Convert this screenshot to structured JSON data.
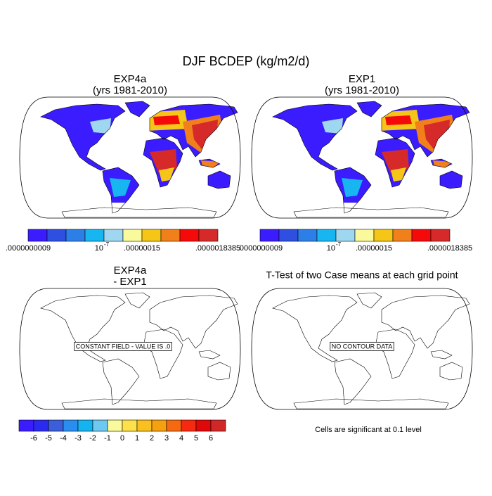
{
  "title": "DJF BCDEP (kg/m2/d)",
  "panels": [
    {
      "title": [
        "EXP4a",
        "(yrs 1981-2010)"
      ],
      "filled": true
    },
    {
      "title": [
        "EXP1",
        "(yrs 1981-2010)"
      ],
      "filled": true
    },
    {
      "title": [
        "EXP4a",
        "- EXP1"
      ],
      "filled": false,
      "annotation": "CONSTANT FIELD - VALUE IS .0"
    },
    {
      "title": [
        "T-Test of two Case means at each grid point"
      ],
      "filled": false,
      "annotation": "NO CONTOUR DATA"
    }
  ],
  "colorbars": [
    {
      "colors": [
        "#3b1cff",
        "#2e4fe0",
        "#2d7fe8",
        "#18b6f0",
        "#9fd7f0",
        "#fafa9c",
        "#f5c518",
        "#f2801a",
        "#f50a0a",
        "#d62a2a"
      ],
      "labels": [
        {
          "value": 9e-10,
          "label": ".0000000009"
        },
        {
          "value": 1e-07,
          "label": "10",
          "exponent": "-7"
        },
        {
          "value": 1.5e-07,
          "label": ".00000015"
        },
        {
          "value": 1.8385e-06,
          "label": ".0000018385"
        }
      ]
    },
    {
      "colors": [
        "#3b1cff",
        "#2e4fe0",
        "#2d7fe8",
        "#18b6f0",
        "#9fd7f0",
        "#fafa9c",
        "#f5c518",
        "#f2801a",
        "#f50a0a",
        "#d62a2a"
      ],
      "labels": [
        {
          "value": 9e-10,
          "label": ".0000000009"
        },
        {
          "value": 1e-07,
          "label": "10",
          "exponent": "-7"
        },
        {
          "value": 1.5e-07,
          "label": ".00000015"
        },
        {
          "value": 1.8385e-06,
          "label": ".0000018385"
        }
      ]
    },
    {
      "colors": [
        "#3b1cff",
        "#2b2bf0",
        "#3a5fd8",
        "#2a8ef0",
        "#14b4f0",
        "#6ec8f0",
        "#fafa9c",
        "#fde04a",
        "#f9c020",
        "#f6a010",
        "#f56a10",
        "#f52a10",
        "#e00808",
        "#d02828"
      ],
      "ticks": [
        -6,
        -5,
        -4,
        -3,
        -2,
        -1,
        0,
        1,
        2,
        3,
        4,
        5,
        6
      ]
    }
  ],
  "note": "Cells are significant at 0.1 level"
}
